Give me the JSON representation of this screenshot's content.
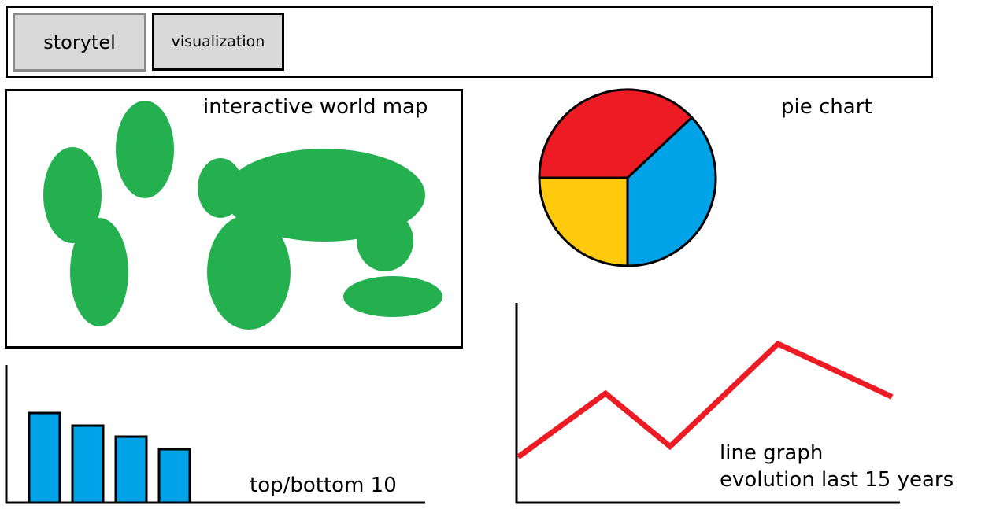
{
  "header": {
    "buttons": [
      {
        "label": "storytel"
      },
      {
        "label": "visualization"
      }
    ]
  },
  "map": {
    "title": "interactive world map",
    "land_color": "#25b050"
  },
  "pie": {
    "title": "pie chart",
    "chart_data": {
      "type": "pie",
      "slices": [
        {
          "value": 38,
          "color": "#ed1c24"
        },
        {
          "value": 37,
          "color": "#00a2e8"
        },
        {
          "value": 25,
          "color": "#ffc90e"
        }
      ]
    }
  },
  "bars": {
    "title": "top/bottom 10",
    "chart_data": {
      "type": "bar",
      "values": [
        114,
        98,
        84,
        68
      ],
      "color": "#00a2e8"
    }
  },
  "line": {
    "title_line1": "line graph",
    "title_line2": "evolution last 15 years",
    "chart_data": {
      "type": "line",
      "values": [
        60,
        150,
        75,
        220,
        145
      ],
      "color": "#ed1c24"
    }
  }
}
